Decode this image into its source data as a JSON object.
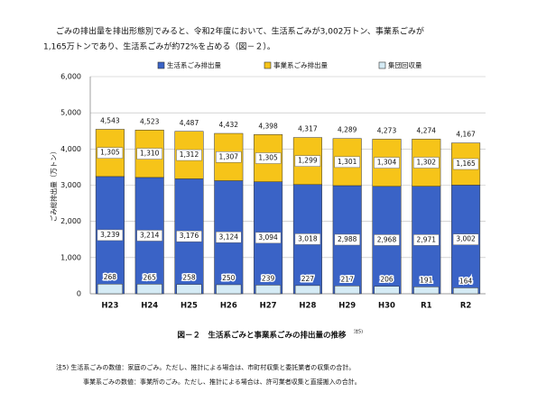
{
  "paragraph": [
    "ごみの排出量を排出形態別でみると、令和2年度において、生活系ごみが3,002万トン、事業系ごみが",
    "1,165万トンであり、生活系ごみが約72%を占める（図－２）。"
  ],
  "caption": "図－２　生活系ごみと事業系ごみの排出量の推移",
  "caption_note": "注5)",
  "notes": [
    "注5)  生活系ごみの数値：家庭のごみ。ただし、推計による場合は、市町村収集と委託業者の収集の合計。",
    "事業系ごみの数値：事業所のごみ。ただし、推計による場合は、許可業者収集と直接搬入の合計。"
  ],
  "chart_data": {
    "type": "stacked_bar",
    "ylabel": "ごみ総排出量（万トン）",
    "categories": [
      "H23",
      "H24",
      "H25",
      "H26",
      "H27",
      "H28",
      "H29",
      "H30",
      "R1",
      "R2"
    ],
    "series": [
      {
        "name": "生活系ごみ排出量",
        "color": "#3a63c6",
        "values": [
          3239,
          3214,
          3176,
          3124,
          3094,
          3018,
          2988,
          2968,
          2971,
          3002
        ],
        "value_labels": [
          "3,239",
          "3,214",
          "3,176",
          "3,124",
          "3,094",
          "3,018",
          "2,988",
          "2,968",
          "2,971",
          "3,002"
        ]
      },
      {
        "name": "事業系ごみ排出量",
        "color": "#f6c419",
        "values": [
          1305,
          1310,
          1312,
          1307,
          1305,
          1299,
          1301,
          1304,
          1302,
          1165
        ],
        "value_labels": [
          "1,305",
          "1,310",
          "1,312",
          "1,307",
          "1,305",
          "1,299",
          "1,301",
          "1,304",
          "1,302",
          "1,165"
        ]
      },
      {
        "name": "集団回収量",
        "color": "#d5ebf5",
        "values": [
          268,
          265,
          258,
          250,
          239,
          227,
          217,
          206,
          191,
          164
        ]
      }
    ],
    "totals": {
      "values": [
        4543,
        4523,
        4487,
        4432,
        4398,
        4317,
        4289,
        4273,
        4274,
        4167
      ],
      "value_labels": [
        "4,543",
        "4,523",
        "4,487",
        "4,432",
        "4,398",
        "4,317",
        "4,289",
        "4,273",
        "4,274",
        "4,167"
      ]
    },
    "ylim": [
      0,
      6000
    ],
    "yticks": [
      0,
      {
        "value": 1000,
        "label": "1,000"
      },
      {
        "value": 2000,
        "label": "2,000"
      },
      {
        "value": 3000,
        "label": "3,000"
      },
      {
        "value": 4000,
        "label": "4,000"
      },
      {
        "value": 5000,
        "label": "5,000"
      },
      {
        "value": 6000,
        "label": "6,000"
      }
    ],
    "grid": true,
    "legend": "top"
  }
}
